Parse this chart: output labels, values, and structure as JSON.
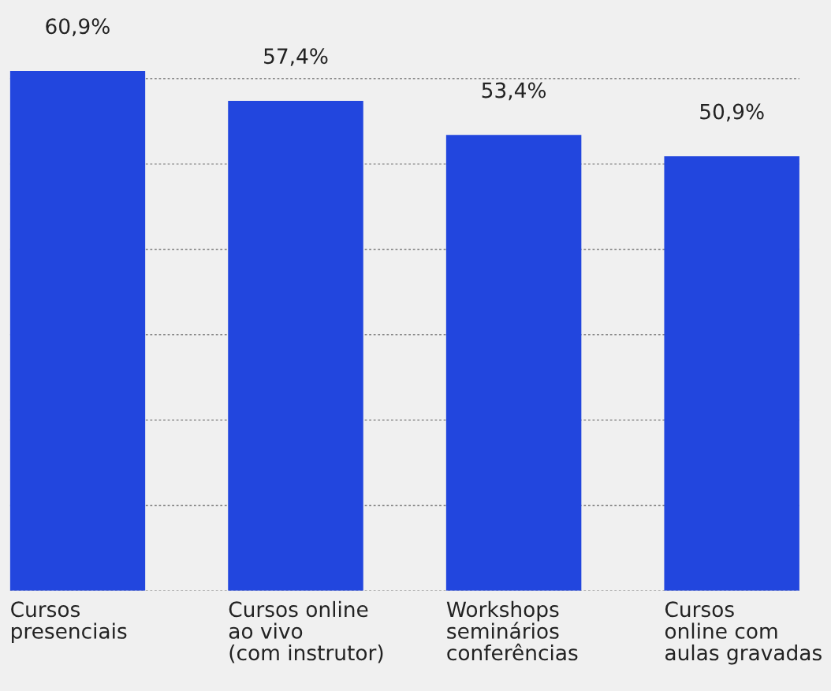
{
  "chart_data": {
    "type": "bar",
    "categories": [
      "Cursos\npresenciais",
      "Cursos online\nao vivo\n(com instrutor)",
      "Workshops\nseminários\nconferências",
      "Cursos\nonline com\naulas gravadas"
    ],
    "values": [
      60.9,
      57.4,
      53.4,
      50.9
    ],
    "value_labels": [
      "60,9%",
      "57,4%",
      "53,4%",
      "50,9%"
    ],
    "color": "#2246de",
    "yticks": [
      {
        "value": 0,
        "label": null
      },
      {
        "value": 10,
        "label": null
      },
      {
        "value": 20,
        "label": null
      },
      {
        "value": 30,
        "label": null
      },
      {
        "value": 40,
        "label": null
      },
      {
        "value": 50,
        "label": null
      },
      {
        "value": 60,
        "label": null
      }
    ],
    "grid": "y",
    "legend": false,
    "tick_labels": "x"
  }
}
